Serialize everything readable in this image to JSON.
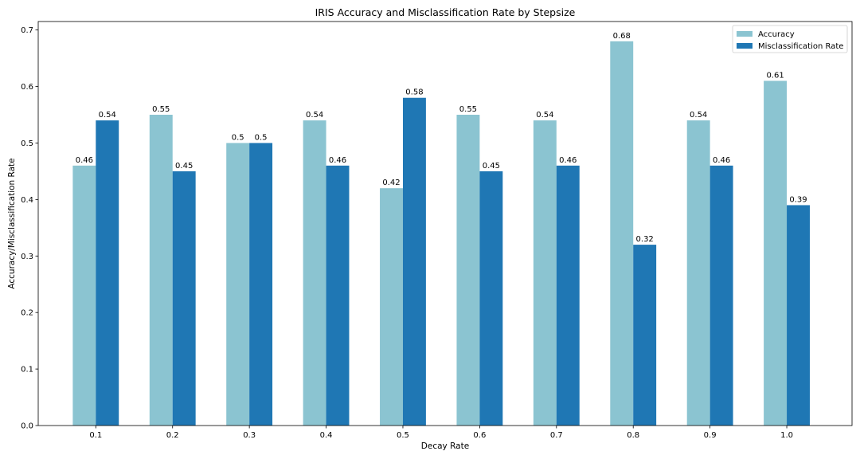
{
  "chart_data": {
    "type": "bar",
    "title": "IRIS Accuracy and Misclassification Rate by Stepsize",
    "xlabel": "Decay Rate",
    "ylabel": "Accuracy/Misclassification Rate",
    "categories": [
      "0.1",
      "0.2",
      "0.3",
      "0.4",
      "0.5",
      "0.6",
      "0.7",
      "0.8",
      "0.9",
      "1.0"
    ],
    "series": [
      {
        "name": "Accuracy",
        "color": "#8bc4d1",
        "values": [
          0.46,
          0.55,
          0.5,
          0.54,
          0.42,
          0.55,
          0.54,
          0.68,
          0.54,
          0.61
        ],
        "labels": [
          "0.46",
          "0.55",
          "0.5",
          "0.54",
          "0.42",
          "0.55",
          "0.54",
          "0.68",
          "0.54",
          "0.61"
        ]
      },
      {
        "name": "Misclassification Rate",
        "color": "#1f77b4",
        "values": [
          0.54,
          0.45,
          0.5,
          0.46,
          0.58,
          0.45,
          0.46,
          0.32,
          0.46,
          0.39
        ],
        "labels": [
          "0.54",
          "0.45",
          "0.5",
          "0.46",
          "0.58",
          "0.45",
          "0.46",
          "0.32",
          "0.46",
          "0.39"
        ]
      }
    ],
    "ylim": [
      0,
      0.715
    ],
    "yticks": [
      "0.0",
      "0.1",
      "0.2",
      "0.3",
      "0.4",
      "0.5",
      "0.6",
      "0.7"
    ],
    "grid": false,
    "legend_position": "top-right"
  }
}
